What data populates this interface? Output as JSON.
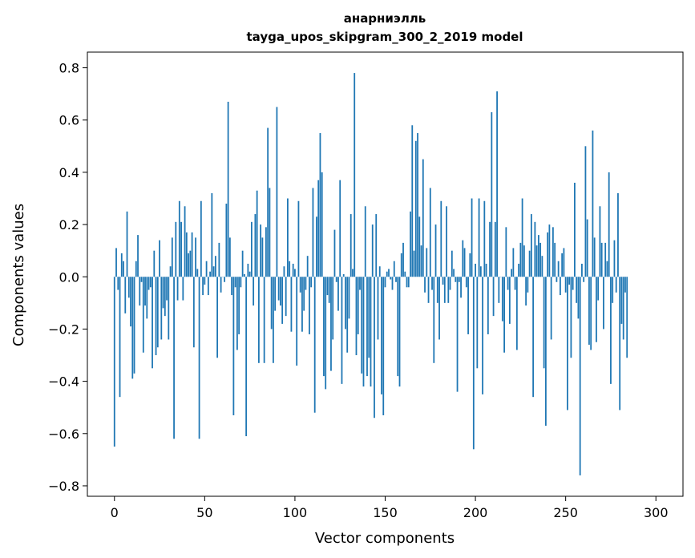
{
  "chart_data": {
    "type": "bar",
    "title": "анарниэлль",
    "subtitle": "tayga_upos_skipgram_300_2_2019 model",
    "xlabel": "Vector components",
    "ylabel": "Components values",
    "xlim": [
      -15,
      315
    ],
    "ylim": [
      -0.84,
      0.86
    ],
    "x_ticks": [
      0,
      50,
      100,
      150,
      200,
      250,
      300
    ],
    "y_ticks": [
      -0.8,
      -0.6,
      -0.4,
      -0.2,
      0.0,
      0.2,
      0.4,
      0.6,
      0.8
    ],
    "x_tick_labels": [
      "0",
      "50",
      "100",
      "150",
      "200",
      "250",
      "300"
    ],
    "y_tick_labels": [
      "−0.8",
      "−0.6",
      "−0.4",
      "−0.2",
      "0.0",
      "0.2",
      "0.4",
      "0.6",
      "0.8"
    ],
    "bar_color": "#1f77b4",
    "grid": false,
    "values": [
      -0.65,
      0.11,
      -0.05,
      -0.46,
      0.09,
      0.06,
      -0.14,
      0.25,
      -0.08,
      -0.19,
      -0.39,
      -0.37,
      0.06,
      0.16,
      -0.11,
      -0.02,
      -0.29,
      -0.11,
      -0.16,
      -0.05,
      -0.04,
      -0.35,
      0.1,
      -0.3,
      -0.27,
      0.14,
      -0.24,
      -0.12,
      -0.15,
      -0.09,
      -0.24,
      0.04,
      0.15,
      -0.62,
      0.21,
      -0.09,
      0.29,
      0.21,
      -0.09,
      0.27,
      0.17,
      0.09,
      0.1,
      0.17,
      -0.27,
      0.15,
      0.03,
      -0.62,
      0.29,
      -0.07,
      -0.03,
      0.06,
      -0.07,
      0.02,
      0.32,
      0.04,
      0.08,
      -0.31,
      0.13,
      -0.06,
      0.0,
      -0.02,
      0.28,
      0.67,
      0.15,
      -0.07,
      -0.53,
      -0.04,
      -0.28,
      -0.22,
      -0.04,
      0.1,
      0.01,
      -0.61,
      0.05,
      0.02,
      0.21,
      -0.11,
      0.24,
      0.33,
      -0.33,
      0.2,
      0.15,
      -0.33,
      0.19,
      0.57,
      0.34,
      -0.2,
      -0.33,
      -0.13,
      0.65,
      -0.09,
      -0.11,
      -0.18,
      0.04,
      -0.15,
      0.3,
      0.06,
      -0.21,
      0.05,
      0.03,
      -0.34,
      0.29,
      -0.06,
      -0.21,
      -0.13,
      -0.05,
      0.08,
      -0.22,
      -0.04,
      0.34,
      -0.52,
      0.23,
      0.37,
      0.55,
      0.4,
      -0.38,
      -0.43,
      -0.07,
      -0.1,
      -0.36,
      -0.24,
      0.18,
      -0.02,
      -0.13,
      0.37,
      -0.41,
      0.01,
      -0.2,
      -0.29,
      -0.16,
      0.24,
      0.03,
      0.78,
      -0.3,
      -0.22,
      -0.05,
      -0.37,
      -0.42,
      0.27,
      -0.38,
      -0.31,
      -0.42,
      0.2,
      -0.54,
      0.24,
      -0.24,
      0.04,
      -0.45,
      -0.53,
      -0.04,
      0.02,
      0.03,
      -0.01,
      -0.05,
      0.06,
      -0.02,
      -0.38,
      -0.42,
      0.09,
      0.13,
      0.02,
      -0.04,
      -0.04,
      0.25,
      0.58,
      0.1,
      0.52,
      0.55,
      0.23,
      0.12,
      0.45,
      -0.06,
      0.11,
      -0.1,
      0.34,
      -0.05,
      -0.33,
      0.2,
      -0.1,
      -0.24,
      0.29,
      -0.03,
      -0.1,
      0.27,
      -0.1,
      -0.05,
      0.1,
      0.03,
      -0.02,
      -0.44,
      -0.02,
      -0.08,
      0.14,
      0.11,
      -0.04,
      -0.22,
      0.09,
      0.3,
      -0.66,
      0.05,
      -0.35,
      0.3,
      0.04,
      -0.45,
      0.29,
      0.05,
      -0.22,
      0.21,
      0.63,
      -0.15,
      0.21,
      0.71,
      -0.1,
      0.0,
      -0.17,
      -0.29,
      0.19,
      -0.05,
      -0.18,
      0.03,
      0.11,
      -0.05,
      -0.28,
      0.05,
      0.13,
      0.3,
      0.12,
      -0.11,
      -0.06,
      0.1,
      0.24,
      -0.46,
      0.21,
      0.12,
      0.16,
      0.13,
      0.08,
      -0.35,
      -0.57,
      0.17,
      0.2,
      -0.24,
      0.19,
      0.13,
      -0.02,
      0.06,
      -0.07,
      0.09,
      0.11,
      -0.06,
      -0.51,
      -0.03,
      -0.31,
      -0.05,
      0.36,
      -0.1,
      -0.16,
      -0.76,
      0.05,
      -0.02,
      0.5,
      0.22,
      -0.26,
      -0.28,
      0.56,
      0.15,
      -0.25,
      -0.09,
      0.27,
      0.13,
      -0.2,
      0.13,
      0.06,
      0.4,
      -0.41,
      -0.1,
      0.14,
      -0.06,
      0.32,
      -0.51,
      -0.18,
      -0.24,
      -0.06,
      -0.31
    ]
  }
}
